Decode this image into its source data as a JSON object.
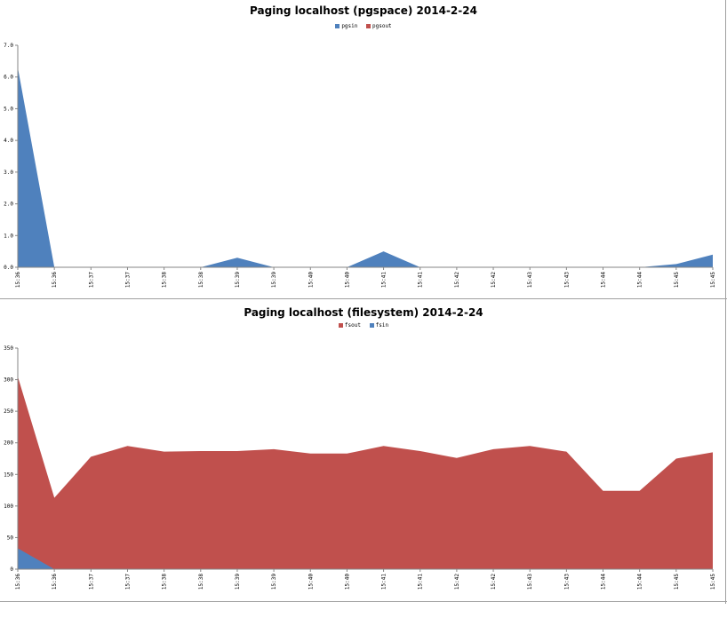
{
  "chart_data": [
    {
      "type": "area",
      "title": "Paging localhost (pgspace)  2014-2-24",
      "categories": [
        "15:36",
        "15:36",
        "15:37",
        "15:37",
        "15:38",
        "15:38",
        "15:39",
        "15:39",
        "15:40",
        "15:40",
        "15:41",
        "15:41",
        "15:42",
        "15:42",
        "15:43",
        "15:43",
        "15:44",
        "15:44",
        "15:45",
        "15:45"
      ],
      "series": [
        {
          "name": "pgsin",
          "color": "#4f81bd",
          "values": [
            6.3,
            0,
            0,
            0,
            0,
            0,
            0.3,
            0,
            0,
            0,
            0.5,
            0,
            0,
            0,
            0,
            0,
            0,
            0,
            0.1,
            0.4
          ]
        },
        {
          "name": "pgsout",
          "color": "#c0504d",
          "values": [
            0,
            0,
            0,
            0,
            0,
            0,
            0,
            0,
            0,
            0,
            0,
            0,
            0,
            0,
            0,
            0,
            0,
            0,
            0,
            0
          ]
        }
      ],
      "yticks": [
        "0.0",
        "1.0",
        "2.0",
        "3.0",
        "4.0",
        "5.0",
        "6.0",
        "7.0"
      ],
      "ylim": [
        0,
        7
      ],
      "grid": false,
      "legend": "top"
    },
    {
      "type": "area",
      "title": "Paging localhost (filesystem)  2014-2-24",
      "categories": [
        "15:36",
        "15:36",
        "15:37",
        "15:37",
        "15:38",
        "15:38",
        "15:39",
        "15:39",
        "15:40",
        "15:40",
        "15:41",
        "15:41",
        "15:42",
        "15:42",
        "15:43",
        "15:43",
        "15:44",
        "15:44",
        "15:45",
        "15:45"
      ],
      "series": [
        {
          "name": "fsout",
          "color": "#c0504d",
          "values": [
            305,
            113,
            178,
            195,
            186,
            187,
            187,
            190,
            183,
            183,
            195,
            187,
            176,
            190,
            195,
            186,
            124,
            124,
            175,
            185
          ]
        },
        {
          "name": "fsin",
          "color": "#4f81bd",
          "values": [
            33,
            0,
            0,
            0,
            0,
            0,
            0,
            0,
            0,
            0,
            0,
            0,
            0,
            0,
            0,
            0,
            0,
            0,
            0,
            0
          ]
        }
      ],
      "yticks": [
        "0",
        "50",
        "100",
        "150",
        "200",
        "250",
        "300",
        "350"
      ],
      "ylim": [
        0,
        350
      ],
      "grid": false,
      "legend": "top"
    }
  ]
}
